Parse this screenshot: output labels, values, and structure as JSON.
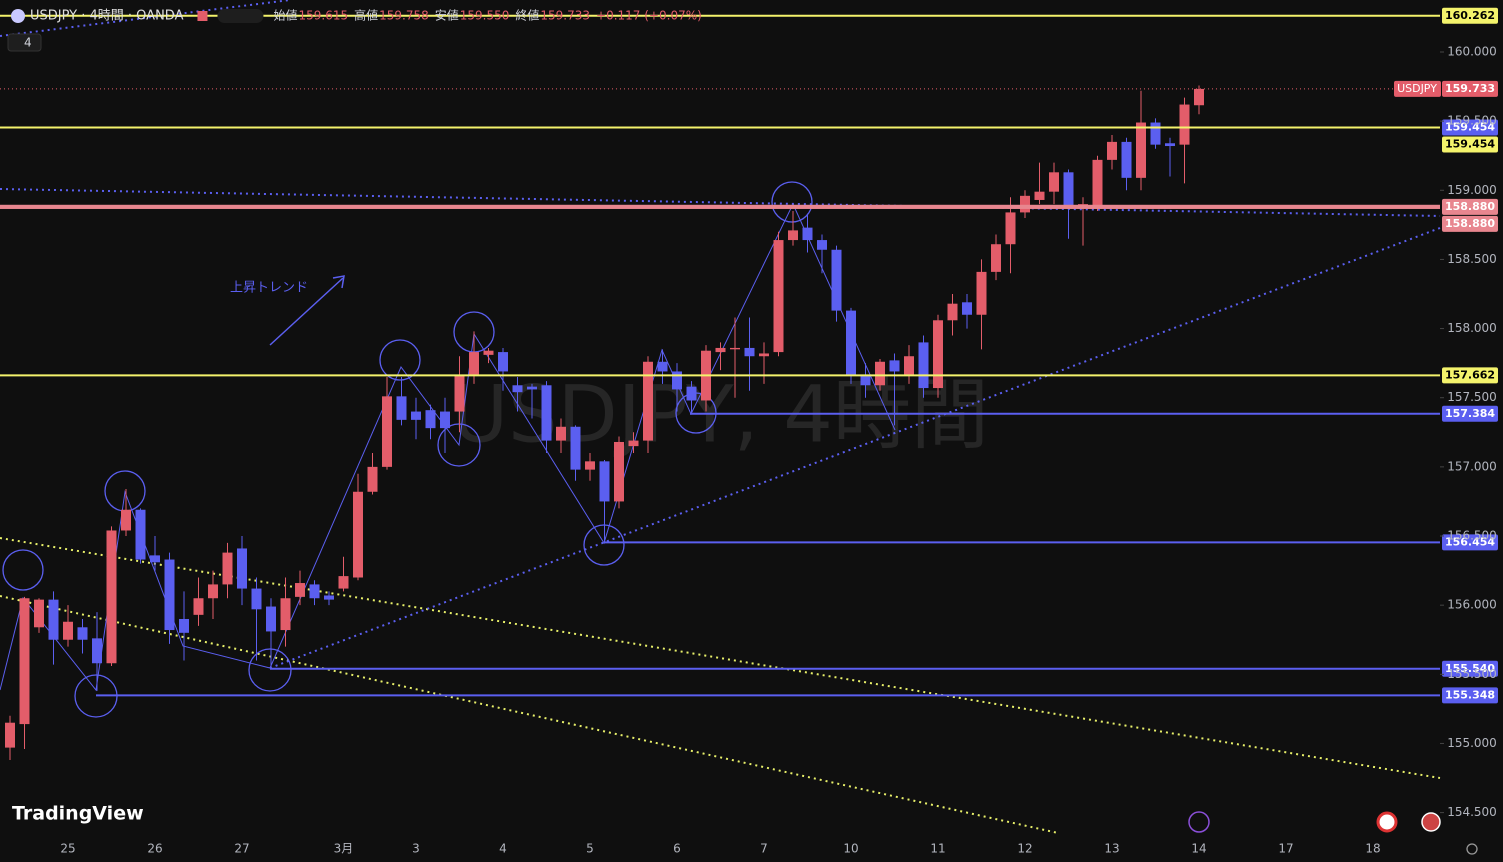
{
  "chart_data": {
    "type": "candlestick",
    "title": "USDJPY · 4時間 · OANDA",
    "indicator_count": 4,
    "legend_ohlc": [
      {
        "label": "始値",
        "value": "159.615"
      },
      {
        "label": "高値",
        "value": "159.758"
      },
      {
        "label": "安値",
        "value": "159.550"
      },
      {
        "label": "終値",
        "value": "159.733"
      }
    ],
    "change": "+0.117 (+0.07%)",
    "watermark": "USDJPY, 4時間",
    "annotation": "上昇トレンド",
    "brand": "TradingView",
    "up_color": "#e35d6a",
    "down_color": "#5b5ff0",
    "categories": [
      null,
      null,
      null,
      null,
      "25",
      null,
      null,
      null,
      null,
      null,
      "26",
      null,
      null,
      null,
      null,
      null,
      "27",
      null,
      null,
      null,
      null,
      null,
      null,
      "3月",
      null,
      null,
      null,
      null,
      "3",
      null,
      null,
      null,
      null,
      null,
      "4",
      null,
      null,
      null,
      null,
      null,
      "5",
      null,
      null,
      null,
      null,
      null,
      "6",
      null,
      null,
      null,
      null,
      null,
      "7",
      null,
      null,
      null,
      null,
      null,
      "10",
      null,
      null,
      null,
      null,
      null,
      "11",
      null,
      null,
      null,
      null,
      null,
      "12",
      null,
      null,
      null,
      null,
      null,
      "13",
      null,
      null,
      null,
      null,
      null,
      "14",
      null,
      null,
      null,
      null,
      null,
      "17",
      null,
      null,
      null,
      null,
      null,
      "18"
    ],
    "open": [
      154.97,
      155.14,
      155.84,
      156.04,
      155.75,
      155.84,
      155.76,
      155.58,
      156.54,
      156.69,
      156.36,
      156.33,
      155.9,
      155.93,
      156.05,
      156.15,
      156.41,
      156.12,
      155.99,
      155.82,
      156.06,
      156.15,
      156.07,
      156.12,
      156.2,
      156.82,
      157.0,
      157.51,
      157.4,
      157.41,
      157.4,
      157.4,
      157.66,
      157.81,
      157.83,
      157.59,
      157.58,
      157.59,
      157.19,
      157.29,
      156.98,
      157.04,
      156.75,
      157.15,
      157.19,
      157.76,
      157.69,
      157.58,
      157.48,
      157.83,
      157.85,
      157.86,
      157.8,
      157.83,
      158.64,
      158.73,
      158.64,
      158.57,
      158.13,
      157.66,
      157.59,
      157.77,
      157.66,
      157.9,
      157.57,
      158.06,
      158.19,
      158.1,
      158.41,
      158.61,
      158.84,
      158.93,
      158.99,
      159.13,
      158.87,
      158.87,
      159.22,
      159.35,
      159.09,
      159.49,
      159.34,
      159.33,
      159.615,
      null,
      null,
      null,
      null,
      null,
      null,
      null,
      null,
      null,
      null,
      null,
      null
    ],
    "high": [
      155.2,
      156.06,
      156.05,
      156.1,
      156.0,
      155.9,
      155.95,
      156.57,
      156.84,
      156.7,
      156.5,
      156.38,
      156.1,
      156.2,
      156.25,
      156.45,
      156.5,
      156.2,
      156.05,
      156.2,
      156.25,
      156.18,
      156.1,
      156.35,
      156.95,
      157.1,
      157.65,
      157.65,
      157.5,
      157.45,
      157.5,
      157.8,
      157.98,
      157.86,
      157.86,
      157.65,
      157.6,
      157.62,
      157.35,
      157.3,
      157.1,
      157.05,
      157.22,
      157.25,
      157.8,
      157.85,
      157.75,
      157.62,
      157.88,
      157.9,
      158.08,
      158.08,
      157.9,
      158.7,
      158.85,
      158.83,
      158.68,
      158.6,
      158.15,
      157.75,
      157.78,
      157.82,
      157.88,
      157.95,
      158.1,
      158.25,
      158.25,
      158.5,
      158.68,
      158.95,
      159.0,
      159.2,
      159.2,
      159.15,
      158.95,
      159.25,
      159.4,
      159.38,
      159.72,
      159.52,
      159.38,
      159.67,
      159.758,
      null,
      null,
      null,
      null,
      null,
      null,
      null,
      null,
      null,
      null,
      null,
      null
    ],
    "low": [
      154.88,
      154.96,
      155.8,
      155.57,
      155.7,
      155.65,
      155.38,
      155.56,
      156.5,
      156.3,
      156.25,
      155.72,
      155.6,
      155.85,
      155.9,
      156.05,
      156.0,
      155.6,
      155.54,
      155.7,
      156.0,
      156.0,
      156.0,
      156.1,
      156.18,
      156.8,
      156.98,
      157.3,
      157.2,
      157.2,
      157.1,
      157.25,
      157.6,
      157.75,
      157.55,
      157.4,
      157.35,
      157.1,
      157.1,
      156.9,
      156.9,
      156.45,
      156.7,
      157.1,
      157.1,
      157.6,
      157.4,
      157.38,
      157.4,
      157.7,
      157.5,
      157.55,
      157.6,
      157.8,
      158.6,
      158.55,
      158.4,
      158.05,
      157.6,
      157.5,
      157.55,
      157.3,
      157.6,
      157.5,
      157.5,
      157.95,
      158.0,
      157.85,
      158.35,
      158.4,
      158.8,
      158.9,
      158.9,
      158.65,
      158.6,
      158.85,
      159.15,
      159.0,
      159.0,
      159.3,
      159.1,
      159.05,
      159.55,
      null,
      null,
      null,
      null,
      null,
      null,
      null,
      null,
      null,
      null,
      null,
      null
    ],
    "close": [
      155.15,
      156.05,
      156.04,
      155.75,
      155.88,
      155.75,
      155.58,
      156.54,
      156.69,
      156.33,
      156.31,
      155.82,
      155.8,
      156.05,
      156.15,
      156.38,
      156.12,
      155.97,
      155.81,
      156.05,
      156.16,
      156.05,
      156.04,
      156.21,
      156.82,
      157.0,
      157.51,
      157.34,
      157.34,
      157.28,
      157.28,
      157.66,
      157.83,
      157.84,
      157.69,
      157.54,
      157.56,
      157.19,
      157.29,
      156.98,
      157.04,
      156.75,
      157.18,
      157.19,
      157.76,
      157.69,
      157.56,
      157.48,
      157.84,
      157.86,
      157.86,
      157.8,
      157.82,
      158.64,
      158.71,
      158.64,
      158.57,
      158.13,
      157.66,
      157.59,
      157.76,
      157.69,
      157.8,
      157.57,
      158.06,
      158.18,
      158.1,
      158.41,
      158.61,
      158.84,
      158.96,
      158.99,
      159.13,
      158.89,
      158.9,
      159.22,
      159.35,
      159.09,
      159.49,
      159.33,
      159.32,
      159.62,
      159.733,
      null,
      null,
      null,
      null,
      null,
      null,
      null,
      null,
      null,
      null,
      null,
      null
    ],
    "ylim": [
      154.338,
      160.376
    ],
    "yticks": [
      {
        "value": 154.5,
        "label": "154.500"
      },
      {
        "value": 155.0,
        "label": "155.000"
      },
      {
        "value": 155.5,
        "label": "155.500"
      },
      {
        "value": 156.0,
        "label": "156.000"
      },
      {
        "value": 156.5,
        "label": "156.500"
      },
      {
        "value": 157.0,
        "label": "157.000"
      },
      {
        "value": 157.5,
        "label": "157.500"
      },
      {
        "value": 158.0,
        "label": "158.000"
      },
      {
        "value": 158.5,
        "label": "158.500"
      },
      {
        "value": 159.0,
        "label": "159.000"
      },
      {
        "value": 159.5,
        "label": "159.500"
      },
      {
        "value": 160.0,
        "label": "160.000"
      }
    ],
    "last_price": {
      "name": "USDJPY",
      "value": 159.733,
      "color": "#e35d6a"
    },
    "levels": [
      {
        "value": 160.262,
        "color": "#f4f36c"
      },
      {
        "value": 159.454,
        "color": "#5b5ff0"
      },
      {
        "value": 159.454,
        "color": "#f4f36c"
      },
      {
        "value": 158.88,
        "label": "158.880",
        "color": "#e8868f"
      },
      {
        "value": 158.88,
        "label": "158.880",
        "color": "#e8868f"
      },
      {
        "value": 157.662,
        "color": "#f4f36c"
      },
      {
        "value": 157.384,
        "color": "#5b5ff0"
      },
      {
        "value": 156.454,
        "color": "#5b5ff0"
      },
      {
        "value": 155.54,
        "label": "155.540",
        "color": "#5b5ff0"
      },
      {
        "value": 155.348,
        "color": "#5b5ff0"
      }
    ]
  }
}
